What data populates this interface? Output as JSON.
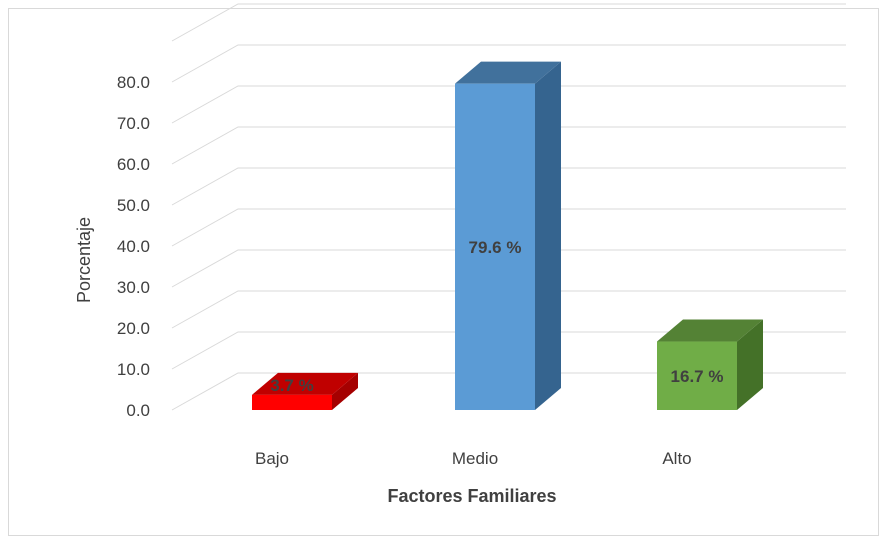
{
  "chart_data": {
    "type": "bar",
    "style": "3d-column",
    "title": "",
    "xlabel": "Factores Familiares",
    "ylabel": "Porcentaje",
    "ylim": [
      0,
      80
    ],
    "yticks": [
      "0.0",
      "10.0",
      "20.0",
      "30.0",
      "40.0",
      "50.0",
      "60.0",
      "70.0",
      "80.0"
    ],
    "grid": true,
    "legend": "none",
    "categories": [
      "Bajo",
      "Medio",
      "Alto"
    ],
    "values": [
      3.7,
      79.6,
      16.7
    ],
    "data_labels": [
      "3.7 %",
      "79.6 %",
      "16.7 %"
    ],
    "colors": [
      {
        "front": "#ff0000",
        "side": "#a50000",
        "top": "#c00000"
      },
      {
        "front": "#5b9bd5",
        "side": "#35648f",
        "top": "#41719c"
      },
      {
        "front": "#70ad47",
        "side": "#447128",
        "top": "#548235"
      }
    ]
  }
}
